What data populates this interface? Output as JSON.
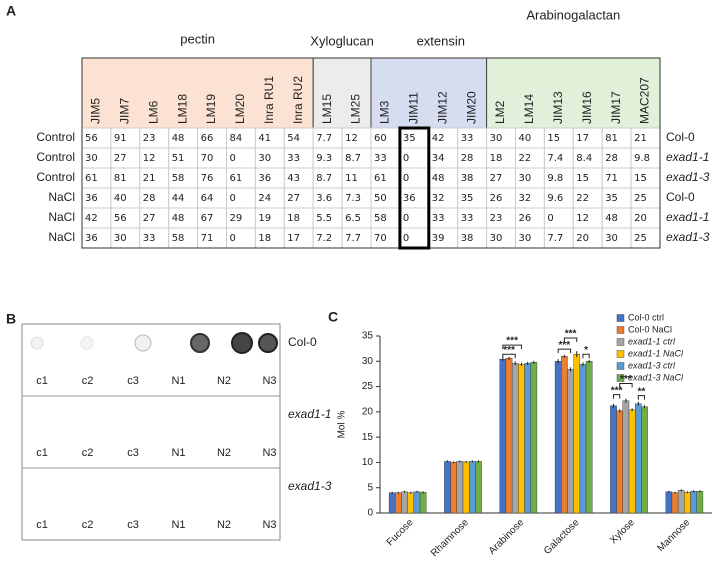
{
  "panel_a": {
    "label": "A",
    "groups": [
      {
        "name": "pectin",
        "color": "#fbe2d2",
        "columns": [
          "JIM5",
          "JIM7",
          "LM6",
          "LM18",
          "LM19",
          "LM20",
          "Inra RU1",
          "Inra RU2"
        ]
      },
      {
        "name": "Xyloglucan",
        "color": "#ececec",
        "columns": [
          "LM15",
          "LM25"
        ]
      },
      {
        "name": "extensin",
        "color": "#d7ddf1",
        "columns": [
          "LM3",
          "JIM11",
          "JIM12",
          "JIM20"
        ]
      },
      {
        "name": "Arabinogalactan",
        "color": "#e0f0d9",
        "columns": [
          "LM2",
          "LM14",
          "JIM13",
          "JIM16",
          "JIM17",
          "MAC207"
        ]
      }
    ],
    "rows": [
      {
        "condition": "Control",
        "genotype": "Col-0",
        "values": [
          56,
          91,
          23,
          48,
          66,
          84,
          41,
          54,
          7.7,
          12,
          60,
          35,
          42,
          33,
          30,
          40,
          15,
          17,
          81,
          21
        ]
      },
      {
        "condition": "Control",
        "genotype": "exad1-1",
        "values": [
          30,
          27,
          12,
          51,
          70,
          0,
          30,
          33,
          9.3,
          8.7,
          33,
          0,
          34,
          28,
          18,
          22,
          7.4,
          8.4,
          28,
          9.8
        ]
      },
      {
        "condition": "Control",
        "genotype": "exad1-3",
        "values": [
          61,
          81,
          21,
          58,
          76,
          61,
          36,
          43,
          8.7,
          11,
          61,
          0,
          48,
          38,
          27,
          30,
          9.8,
          15,
          71,
          15
        ]
      },
      {
        "condition": "NaCl",
        "genotype": "Col-0",
        "values": [
          36,
          40,
          28,
          44,
          64,
          0,
          24,
          27,
          3.6,
          7.3,
          50,
          36,
          32,
          35,
          26,
          32,
          9.6,
          22,
          35,
          25
        ]
      },
      {
        "condition": "NaCl",
        "genotype": "exad1-1",
        "values": [
          42,
          56,
          27,
          48,
          67,
          29,
          19,
          18,
          5.5,
          6.5,
          58,
          0,
          33,
          33,
          23,
          26,
          0,
          12,
          48,
          20
        ]
      },
      {
        "condition": "NaCl",
        "genotype": "exad1-3",
        "values": [
          36,
          30,
          33,
          58,
          71,
          0,
          18,
          17,
          7.2,
          7.7,
          70,
          0,
          39,
          38,
          30,
          30,
          7.7,
          20,
          30,
          25
        ]
      }
    ]
  },
  "panel_b": {
    "label": "B",
    "lanes": [
      "c1",
      "c2",
      "c3",
      "N1",
      "N2",
      "N3"
    ],
    "rows": [
      "Col-0",
      "exad1-1",
      "exad1-3"
    ]
  },
  "chart_data": {
    "type": "bar",
    "label": "C",
    "y_label": "Mol %",
    "categories": [
      "Fucose",
      "Rhamnose",
      "Arabinose",
      "Galactose",
      "Xylose",
      "Mannose"
    ],
    "series": [
      {
        "name": "Col-0 ctrl",
        "color": "#4472c4",
        "values": [
          4.0,
          10.2,
          30.4,
          30.0,
          21.2,
          4.2
        ],
        "errors": [
          0.2,
          0.2,
          0.3,
          0.4,
          0.4,
          0.2
        ]
      },
      {
        "name": "Col-0 NaCl",
        "color": "#ed7d31",
        "values": [
          4.0,
          10.0,
          30.6,
          31.0,
          20.2,
          4.0
        ],
        "errors": [
          0.2,
          0.2,
          0.3,
          0.3,
          0.3,
          0.2
        ]
      },
      {
        "name": "exad1-1 ctrl",
        "color": "#a5a5a5",
        "values": [
          4.2,
          10.2,
          29.6,
          28.4,
          22.2,
          4.5
        ],
        "errors": [
          0.2,
          0.2,
          0.4,
          0.4,
          0.4,
          0.2
        ]
      },
      {
        "name": "exad1-1 NaCl",
        "color": "#ffc000",
        "values": [
          4.0,
          10.1,
          29.4,
          31.4,
          20.4,
          4.1
        ],
        "errors": [
          0.2,
          0.2,
          0.3,
          0.6,
          0.3,
          0.2
        ]
      },
      {
        "name": "exad1-3 ctrl",
        "color": "#5b9bd5",
        "values": [
          4.2,
          10.2,
          29.6,
          29.4,
          21.6,
          4.3
        ],
        "errors": [
          0.2,
          0.2,
          0.3,
          0.4,
          0.4,
          0.2
        ]
      },
      {
        "name": "exad1-3 NaCl",
        "color": "#70ad47",
        "values": [
          4.1,
          10.2,
          29.8,
          30.0,
          21.0,
          4.3
        ],
        "errors": [
          0.2,
          0.2,
          0.3,
          0.3,
          0.3,
          0.2
        ]
      }
    ],
    "annotations": [
      "***",
      "***",
      "***",
      "***",
      "*",
      "***",
      "***",
      "**"
    ],
    "ylim": [
      0,
      35
    ],
    "yticks": [
      0,
      5,
      10,
      15,
      20,
      25,
      30,
      35
    ]
  }
}
